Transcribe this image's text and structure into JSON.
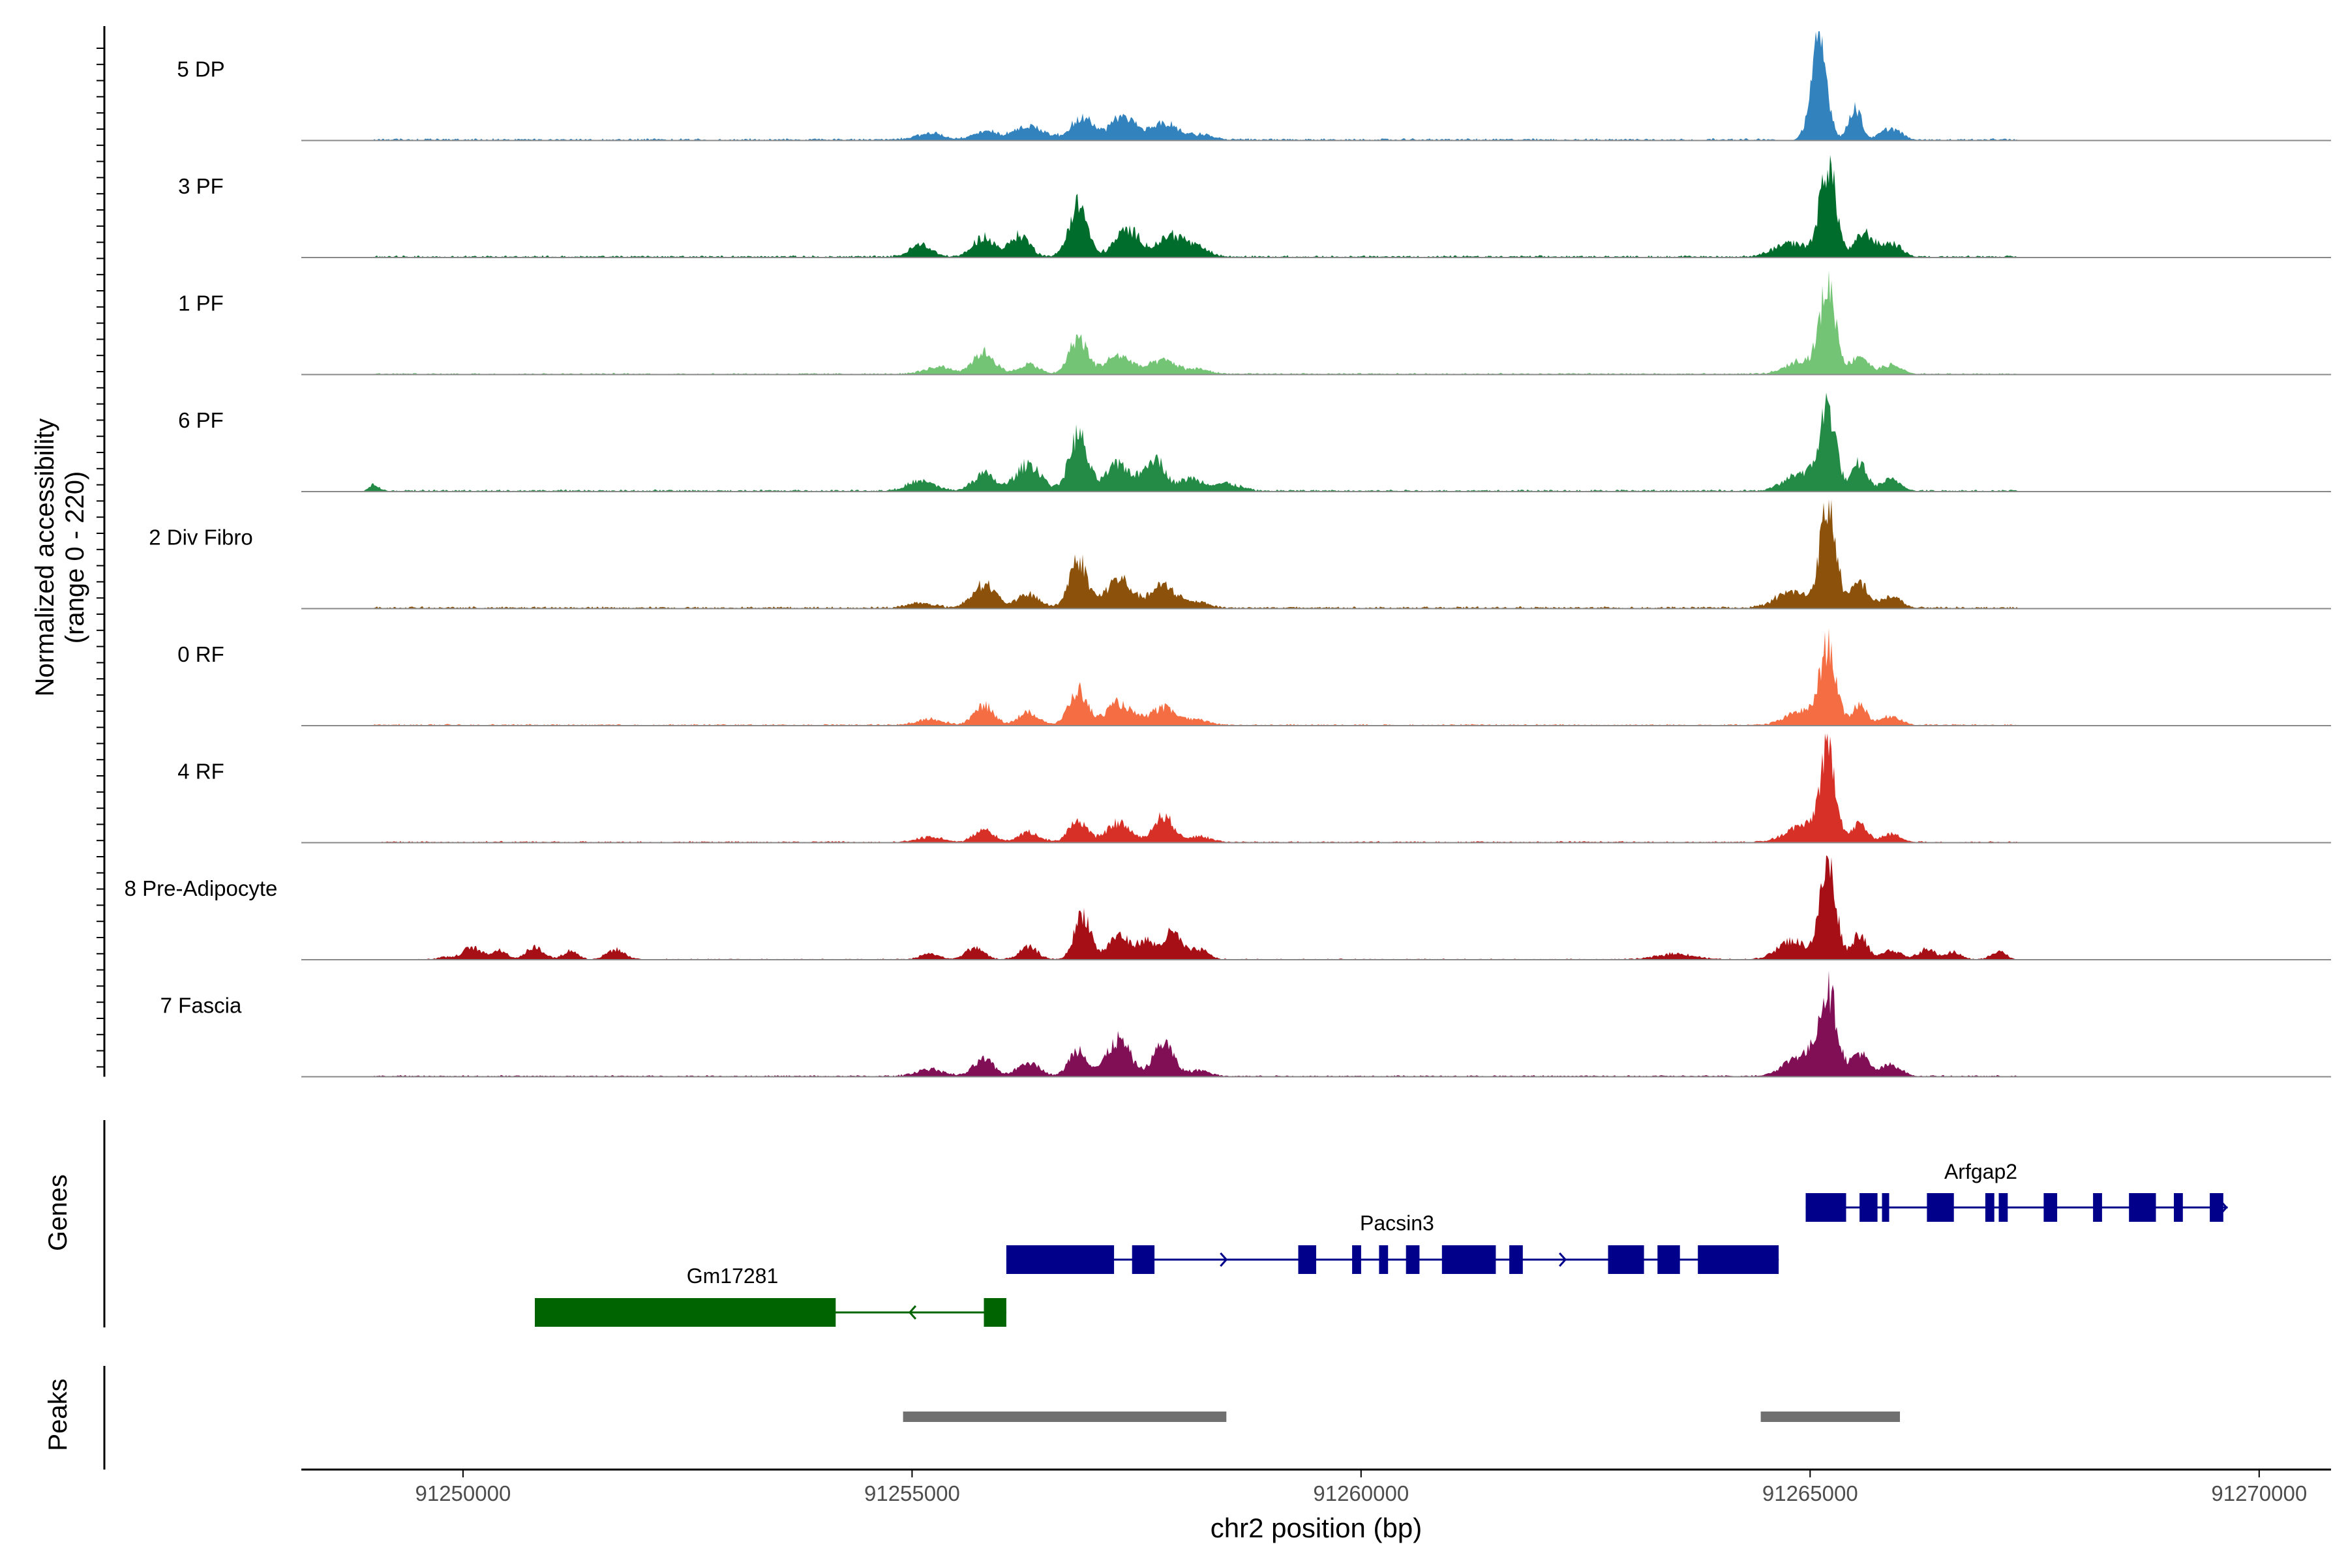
{
  "chart_data": {
    "type": "area",
    "title": "",
    "ylabel_line1": "Normalized accessibility",
    "ylabel_line2": "(range 0 - 220)",
    "ylim": [
      0,
      220
    ],
    "xlabel": "chr2 position (bp)",
    "xlim": [
      91248200,
      91270800
    ],
    "xticks": [
      91250000,
      91255000,
      91260000,
      91265000,
      91270000
    ],
    "xtick_labels": [
      "91250000",
      "91255000",
      "91260000",
      "91265000",
      "91270000"
    ],
    "panel_labels": {
      "genes": "Genes",
      "peaks": "Peaks"
    },
    "series": [
      {
        "name": "5 DP",
        "color": "#3182BD",
        "baseline": 4,
        "span": [
          91249000,
          91264650,
          91266200,
          91267300
        ],
        "peaks": [
          [
            91255200,
            14,
            150
          ],
          [
            91255800,
            18,
            120
          ],
          [
            91256300,
            28,
            180
          ],
          [
            91256900,
            45,
            130
          ],
          [
            91257350,
            48,
            130
          ],
          [
            91257800,
            35,
            150
          ],
          [
            91258200,
            10,
            150
          ],
          [
            91265100,
            200,
            90
          ],
          [
            91265500,
            70,
            70
          ],
          [
            91265900,
            25,
            120
          ]
        ]
      },
      {
        "name": "3 PF",
        "color": "#006D2C",
        "baseline": 4,
        "span": [
          91249000,
          91264650,
          91266200,
          91267300
        ],
        "peaks": [
          [
            91255100,
            25,
            120
          ],
          [
            91255800,
            40,
            120
          ],
          [
            91256200,
            45,
            110
          ],
          [
            91256850,
            110,
            100
          ],
          [
            91257400,
            55,
            140
          ],
          [
            91257900,
            45,
            150
          ],
          [
            91258200,
            15,
            120
          ],
          [
            91264800,
            30,
            180
          ],
          [
            91265200,
            190,
            90
          ],
          [
            91265600,
            50,
            100
          ],
          [
            91265900,
            30,
            120
          ]
        ]
      },
      {
        "name": "1 PF",
        "color": "#74C476",
        "baseline": 3,
        "span": [
          91249000,
          91264650,
          91266200,
          91267300
        ],
        "peaks": [
          [
            91255300,
            15,
            150
          ],
          [
            91255800,
            45,
            120
          ],
          [
            91256300,
            20,
            110
          ],
          [
            91256850,
            75,
            100
          ],
          [
            91257300,
            38,
            150
          ],
          [
            91257800,
            28,
            150
          ],
          [
            91258200,
            10,
            120
          ],
          [
            91264900,
            30,
            160
          ],
          [
            91265200,
            180,
            90
          ],
          [
            91265550,
            40,
            90
          ],
          [
            91265900,
            20,
            120
          ]
        ]
      },
      {
        "name": "6 PF",
        "color": "#238B45",
        "baseline": 4,
        "span": [
          91249000,
          91264650,
          91266200,
          91267300
        ],
        "peaks": [
          [
            91249000,
            15,
            50
          ],
          [
            91255100,
            20,
            150
          ],
          [
            91255800,
            35,
            120
          ],
          [
            91256300,
            55,
            140
          ],
          [
            91256850,
            115,
            100
          ],
          [
            91257300,
            55,
            140
          ],
          [
            91257700,
            70,
            110
          ],
          [
            91258100,
            25,
            130
          ],
          [
            91258500,
            15,
            150
          ],
          [
            91264900,
            40,
            170
          ],
          [
            91265200,
            170,
            90
          ],
          [
            91265550,
            60,
            80
          ],
          [
            91265900,
            25,
            120
          ]
        ]
      },
      {
        "name": "2 Div Fibro",
        "color": "#8C510A",
        "baseline": 4,
        "span": [
          91249000,
          91264650,
          91266200,
          91267300
        ],
        "peaks": [
          [
            91255100,
            10,
            150
          ],
          [
            91255800,
            50,
            130
          ],
          [
            91256300,
            28,
            120
          ],
          [
            91256850,
            100,
            100
          ],
          [
            91257300,
            60,
            140
          ],
          [
            91257800,
            45,
            150
          ],
          [
            91258200,
            12,
            120
          ],
          [
            91264800,
            35,
            180
          ],
          [
            91265200,
            210,
            90
          ],
          [
            91265550,
            55,
            90
          ],
          [
            91265900,
            25,
            120
          ]
        ]
      },
      {
        "name": "0 RF",
        "color": "#F46D43",
        "baseline": 3,
        "span": [
          91249000,
          91264650,
          91266200,
          91267300
        ],
        "peaks": [
          [
            91255200,
            12,
            150
          ],
          [
            91255800,
            40,
            110
          ],
          [
            91256300,
            25,
            120
          ],
          [
            91256850,
            72,
            100
          ],
          [
            91257300,
            45,
            140
          ],
          [
            91257800,
            35,
            150
          ],
          [
            91258200,
            10,
            120
          ],
          [
            91264900,
            30,
            170
          ],
          [
            91265200,
            160,
            90
          ],
          [
            91265550,
            45,
            80
          ],
          [
            91265900,
            20,
            120
          ]
        ]
      },
      {
        "name": "4 RF",
        "color": "#D73027",
        "baseline": 3,
        "span": [
          91249000,
          91264650,
          91266200,
          91267300
        ],
        "peaks": [
          [
            91255200,
            10,
            150
          ],
          [
            91255800,
            25,
            110
          ],
          [
            91256300,
            20,
            120
          ],
          [
            91256850,
            45,
            100
          ],
          [
            91257300,
            40,
            130
          ],
          [
            91257800,
            55,
            110
          ],
          [
            91258200,
            12,
            120
          ],
          [
            91264900,
            35,
            170
          ],
          [
            91265200,
            185,
            90
          ],
          [
            91265550,
            40,
            80
          ],
          [
            91265900,
            18,
            120
          ]
        ]
      },
      {
        "name": "8 Pre-Adipocyte",
        "color": "#A50F15",
        "baseline": 2,
        "span": [
          91249500,
          91264600,
          91265800,
          91267200
        ],
        "peaks": [
          [
            91249800,
            5,
            80
          ],
          [
            91250100,
            25,
            100
          ],
          [
            91250400,
            20,
            80
          ],
          [
            91250800,
            25,
            100
          ],
          [
            91251200,
            18,
            80
          ],
          [
            91251700,
            20,
            100
          ],
          [
            91255200,
            12,
            100
          ],
          [
            91255700,
            25,
            100
          ],
          [
            91256300,
            25,
            100
          ],
          [
            91256900,
            95,
            90
          ],
          [
            91257300,
            50,
            110
          ],
          [
            91257600,
            38,
            100
          ],
          [
            91257900,
            55,
            100
          ],
          [
            91258200,
            20,
            100
          ],
          [
            91263500,
            12,
            200
          ],
          [
            91264800,
            40,
            160
          ],
          [
            91265200,
            195,
            90
          ],
          [
            91265550,
            55,
            80
          ],
          [
            91265900,
            20,
            100
          ],
          [
            91266300,
            20,
            100
          ],
          [
            91266600,
            15,
            80
          ],
          [
            91267100,
            18,
            80
          ]
        ]
      },
      {
        "name": "7 Fascia",
        "color": "#810F56",
        "baseline": 3,
        "span": [
          91249000,
          91264650,
          91266200,
          91267300
        ],
        "peaks": [
          [
            91255200,
            15,
            150
          ],
          [
            91255800,
            35,
            110
          ],
          [
            91256300,
            30,
            120
          ],
          [
            91256850,
            55,
            100
          ],
          [
            91257300,
            75,
            130
          ],
          [
            91257800,
            70,
            110
          ],
          [
            91258200,
            12,
            120
          ],
          [
            91264900,
            45,
            180
          ],
          [
            91265200,
            170,
            100
          ],
          [
            91265550,
            50,
            90
          ],
          [
            91265900,
            25,
            120
          ]
        ]
      }
    ],
    "genes": [
      {
        "name": "Arfgap2",
        "color": "#00008B",
        "strand": "+",
        "start": 91264950,
        "end": 91269650,
        "label_x": 91266900,
        "exons": [
          [
            91264950,
            91265400
          ],
          [
            91265550,
            91265750
          ],
          [
            91265800,
            91265880
          ],
          [
            91266300,
            91266600
          ],
          [
            91266950,
            91267050
          ],
          [
            91267100,
            91267200
          ],
          [
            91267600,
            91267750
          ],
          [
            91268150,
            91268250
          ],
          [
            91268550,
            91268850
          ],
          [
            91269050,
            91269150
          ],
          [
            91269450,
            91269600
          ]
        ]
      },
      {
        "name": "Pacsin3",
        "color": "#00008B",
        "strand": "+",
        "start": 91256050,
        "end": 91264650,
        "label_x": 91260400,
        "exons": [
          [
            91256050,
            91257250
          ],
          [
            91257450,
            91257700
          ],
          [
            91259300,
            91259500
          ],
          [
            91259900,
            91260000
          ],
          [
            91260200,
            91260300
          ],
          [
            91260500,
            91260650
          ],
          [
            91260900,
            91261500
          ],
          [
            91261650,
            91261800
          ],
          [
            91262750,
            91263150
          ],
          [
            91263300,
            91263550
          ],
          [
            91263750,
            91264650
          ]
        ]
      },
      {
        "name": "Gm17281",
        "color": "#006400",
        "strand": "-",
        "start": 91250800,
        "end": 91256050,
        "label_x": 91253000,
        "exons": [
          [
            91250800,
            91254150
          ],
          [
            91255800,
            91256050
          ]
        ]
      }
    ],
    "peaks": [
      {
        "start": 91254900,
        "end": 91258500
      },
      {
        "start": 91264450,
        "end": 91266000
      }
    ]
  }
}
